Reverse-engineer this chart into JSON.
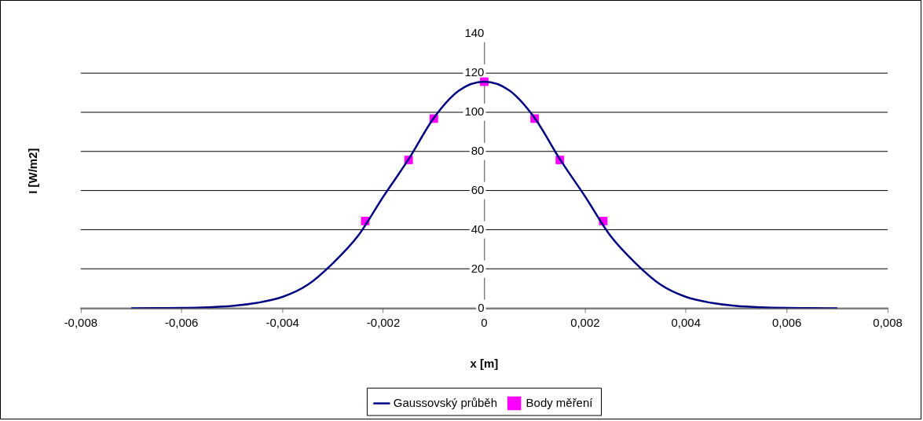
{
  "chart_data": {
    "type": "line",
    "xlabel": "x [m]",
    "ylabel": "I [W/m2]",
    "xlim": [
      -0.008,
      0.008
    ],
    "ylim": [
      0,
      140
    ],
    "xticks": [
      {
        "value": -0.008,
        "label": "-0,008"
      },
      {
        "value": -0.006,
        "label": "-0,006"
      },
      {
        "value": -0.004,
        "label": "-0,004"
      },
      {
        "value": -0.002,
        "label": "-0,002"
      },
      0,
      {
        "value": 0.002,
        "label": "0,002"
      },
      {
        "value": 0.004,
        "label": "0,004"
      },
      {
        "value": 0.006,
        "label": "0,006"
      },
      {
        "value": 0.008,
        "label": "0,008"
      }
    ],
    "yticks": [
      0,
      20,
      40,
      60,
      80,
      100,
      120,
      140
    ],
    "grid": "y",
    "legend": "bottom",
    "series": [
      {
        "name": "Gaussovský průběh",
        "type": "line",
        "color": "#000080",
        "marker": "none",
        "line_style": "solid",
        "x": [
          -0.007,
          -0.0065,
          -0.006,
          -0.0055,
          -0.005,
          -0.0045,
          -0.004,
          -0.0035,
          -0.003,
          -0.0025,
          -0.002,
          -0.0015,
          -0.001,
          -0.0005,
          0,
          0.0005,
          0.001,
          0.0015,
          0.002,
          0.0025,
          0.003,
          0.0035,
          0.004,
          0.0045,
          0.005,
          0.0055,
          0.006,
          0.0065,
          0.007
        ],
        "values": [
          0,
          0.1,
          0.2,
          0.5,
          1.2,
          2.8,
          5.8,
          12,
          23,
          37,
          57,
          76,
          97,
          111,
          115.5,
          111,
          97,
          76,
          57,
          37,
          23,
          12,
          5.8,
          2.8,
          1.2,
          0.5,
          0.2,
          0.1,
          0
        ]
      },
      {
        "name": "Body měření",
        "type": "scatter",
        "color": "#ff00ff",
        "marker": "square",
        "x": [
          -0.00236,
          -0.0015,
          -0.001,
          0,
          0.001,
          0.0015,
          0.00236
        ],
        "values": [
          44.5,
          75.6,
          96.7,
          115.5,
          96.7,
          75.6,
          44.5
        ]
      }
    ]
  }
}
